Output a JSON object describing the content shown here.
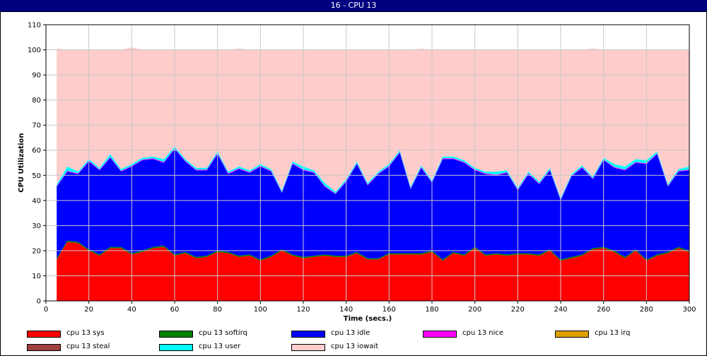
{
  "window": {
    "title": "16 - CPU 13"
  },
  "chart_data": {
    "type": "area",
    "stacked": true,
    "title": "16 - CPU 13",
    "xlabel": "Time (secs.)",
    "ylabel": "CPU Utilization",
    "xlim": [
      0,
      300
    ],
    "ylim": [
      0,
      110
    ],
    "xticks": [
      0,
      20,
      40,
      60,
      80,
      100,
      120,
      140,
      160,
      180,
      200,
      220,
      240,
      260,
      280,
      300
    ],
    "yticks": [
      0,
      10,
      20,
      30,
      40,
      50,
      60,
      70,
      80,
      90,
      100,
      110
    ],
    "grid": true,
    "legend_position": "bottom",
    "x": [
      5,
      10,
      15,
      20,
      25,
      30,
      35,
      40,
      45,
      50,
      55,
      60,
      65,
      70,
      75,
      80,
      85,
      90,
      95,
      100,
      105,
      110,
      115,
      120,
      125,
      130,
      135,
      140,
      145,
      150,
      155,
      160,
      165,
      170,
      175,
      180,
      185,
      190,
      195,
      200,
      205,
      210,
      215,
      220,
      225,
      230,
      235,
      240,
      245,
      250,
      255,
      260,
      265,
      270,
      275,
      280,
      285,
      290,
      295,
      300
    ],
    "series": [
      {
        "name": "cpu 13 sys",
        "color": "#ff0000",
        "values": [
          16.5,
          23.5,
          23,
          20,
          18,
          21,
          21,
          18.5,
          19.5,
          21,
          21.5,
          18,
          19,
          17,
          17.5,
          19.5,
          19,
          17.5,
          18,
          16,
          17.5,
          20,
          18,
          17,
          17.5,
          18,
          17.5,
          17.5,
          19,
          16.5,
          16.5,
          18.5,
          18.5,
          18.5,
          18.5,
          19.5,
          16,
          19,
          18,
          21,
          18,
          18.5,
          18,
          18.5,
          18.5,
          18,
          20,
          16,
          17,
          18,
          20.5,
          21,
          19.5,
          17,
          20,
          16,
          18,
          19,
          21,
          19.5
        ]
      },
      {
        "name": "cpu 13 softirq",
        "color": "#008000",
        "values": [
          0.5,
          0.5,
          0.5,
          0.5,
          0.5,
          0.5,
          0.5,
          0.5,
          0.5,
          0.5,
          0.5,
          0.5,
          0.5,
          0.5,
          0.5,
          0.5,
          0.5,
          0.5,
          0.5,
          0.5,
          0.5,
          0.5,
          0.5,
          0.5,
          0.5,
          0.5,
          0.5,
          0.5,
          0.5,
          0.5,
          0.5,
          0.5,
          0.5,
          0.5,
          0.5,
          0.5,
          0.5,
          0.5,
          0.5,
          0.5,
          0.5,
          0.5,
          0.5,
          0.5,
          0.5,
          0.5,
          0.5,
          0.5,
          0.5,
          0.5,
          0.5,
          0.5,
          0.5,
          0.5,
          0.5,
          0.5,
          0.5,
          0.5,
          0.5,
          0.5
        ]
      },
      {
        "name": "cpu 13 idle",
        "color": "#0000ff",
        "values": [
          28.5,
          27.5,
          27,
          35,
          33.5,
          35.5,
          30,
          34.5,
          36,
          35,
          33,
          42,
          36,
          34.5,
          34,
          38.5,
          31,
          34.5,
          32.5,
          37,
          33.5,
          22.5,
          36,
          34.5,
          33,
          27,
          24.5,
          29.5,
          35,
          29,
          33.5,
          34.5,
          40,
          25.5,
          34,
          27,
          40,
          37,
          36.5,
          30.5,
          32,
          31,
          32.5,
          25,
          31.5,
          28,
          31.5,
          23.5,
          32,
          34.5,
          27.5,
          34.5,
          33,
          34.5,
          34.5,
          38,
          40,
          26,
          30,
          32
        ]
      },
      {
        "name": "cpu 13 nice",
        "color": "#ff00ff",
        "values": [
          0.3,
          0.3,
          0.3,
          0.3,
          0.3,
          0.3,
          0.3,
          0.3,
          0.3,
          0.3,
          0.3,
          0.3,
          0.3,
          0.3,
          0.3,
          0.3,
          0.3,
          0.3,
          0.3,
          0.3,
          0.3,
          0.3,
          0.3,
          0.3,
          0.3,
          0.3,
          0.3,
          0.3,
          0.3,
          0.3,
          0.3,
          0.3,
          0.3,
          0.3,
          0.3,
          0.3,
          0.3,
          0.3,
          0.3,
          0.3,
          0.3,
          0.3,
          0.3,
          0.3,
          0.3,
          0.3,
          0.3,
          0.3,
          0.3,
          0.3,
          0.3,
          0.3,
          0.3,
          0.3,
          0.3,
          0.3,
          0.3,
          0.3,
          0.3,
          0.3
        ]
      },
      {
        "name": "cpu 13 irq",
        "color": "#e0a000",
        "values": [
          0,
          0,
          0,
          0,
          0,
          0,
          0,
          0,
          0,
          0,
          0,
          0,
          0,
          0,
          0,
          0,
          0,
          0,
          0,
          0,
          0,
          0,
          0,
          0,
          0,
          0,
          0,
          0,
          0,
          0,
          0,
          0,
          0,
          0,
          0,
          0,
          0,
          0,
          0,
          0,
          0,
          0,
          0,
          0,
          0,
          0,
          0,
          0,
          0,
          0,
          0,
          0,
          0,
          0,
          0,
          0,
          0,
          0,
          0,
          0
        ]
      },
      {
        "name": "cpu 13 steal",
        "color": "#a04040",
        "values": [
          0,
          0,
          0,
          0,
          0,
          0,
          0,
          0,
          0,
          0,
          0,
          0,
          0,
          0,
          0,
          0,
          0,
          0,
          0,
          0,
          0,
          0,
          0,
          0,
          0,
          0,
          0,
          0,
          0,
          0,
          0,
          0,
          0,
          0,
          0,
          0,
          0,
          0,
          0,
          0,
          0,
          0,
          0,
          0,
          0,
          0,
          0,
          0,
          0,
          0,
          0,
          0,
          0,
          0,
          0,
          0,
          0,
          0,
          0,
          0
        ]
      },
      {
        "name": "cpu 13 user",
        "color": "#00ffff",
        "values": [
          0.7,
          1.7,
          0.7,
          0.7,
          0.7,
          1.2,
          0.7,
          0.7,
          0.7,
          0.7,
          1.2,
          0.7,
          0.7,
          0.7,
          0.7,
          0.7,
          0.7,
          0.7,
          0.7,
          0.7,
          0.7,
          0.7,
          0.7,
          1.2,
          0.7,
          1.2,
          0.7,
          0.7,
          0.7,
          0.7,
          0.7,
          0.7,
          0.7,
          0.7,
          0.7,
          0.7,
          0.7,
          0.7,
          0.7,
          0.7,
          0.7,
          1.2,
          0.7,
          0.7,
          0.7,
          0.7,
          0.7,
          0.7,
          0.7,
          0.7,
          0.7,
          0.7,
          1.2,
          1.2,
          1.2,
          1.2,
          0.7,
          0.7,
          0.7,
          1.2
        ]
      },
      {
        "name": "cpu 13 iowait",
        "color": "#ffcccc",
        "values": [
          54,
          46.5,
          48.5,
          43.5,
          47,
          41.5,
          47.5,
          46.5,
          43,
          42.5,
          43.5,
          38.5,
          43.5,
          47,
          47,
          40.5,
          48.5,
          47,
          48,
          45.5,
          47.5,
          56,
          44.5,
          46.5,
          48,
          53,
          56.5,
          51.5,
          44.5,
          53,
          48.5,
          45.5,
          40,
          54.5,
          46.5,
          52,
          42.5,
          42.5,
          44,
          47,
          48.5,
          48.5,
          48,
          55,
          48.5,
          52.5,
          47,
          59,
          49.5,
          46,
          51,
          43,
          45.5,
          46.5,
          43.5,
          44,
          40.5,
          53.5,
          47.5,
          46.5
        ]
      }
    ]
  }
}
